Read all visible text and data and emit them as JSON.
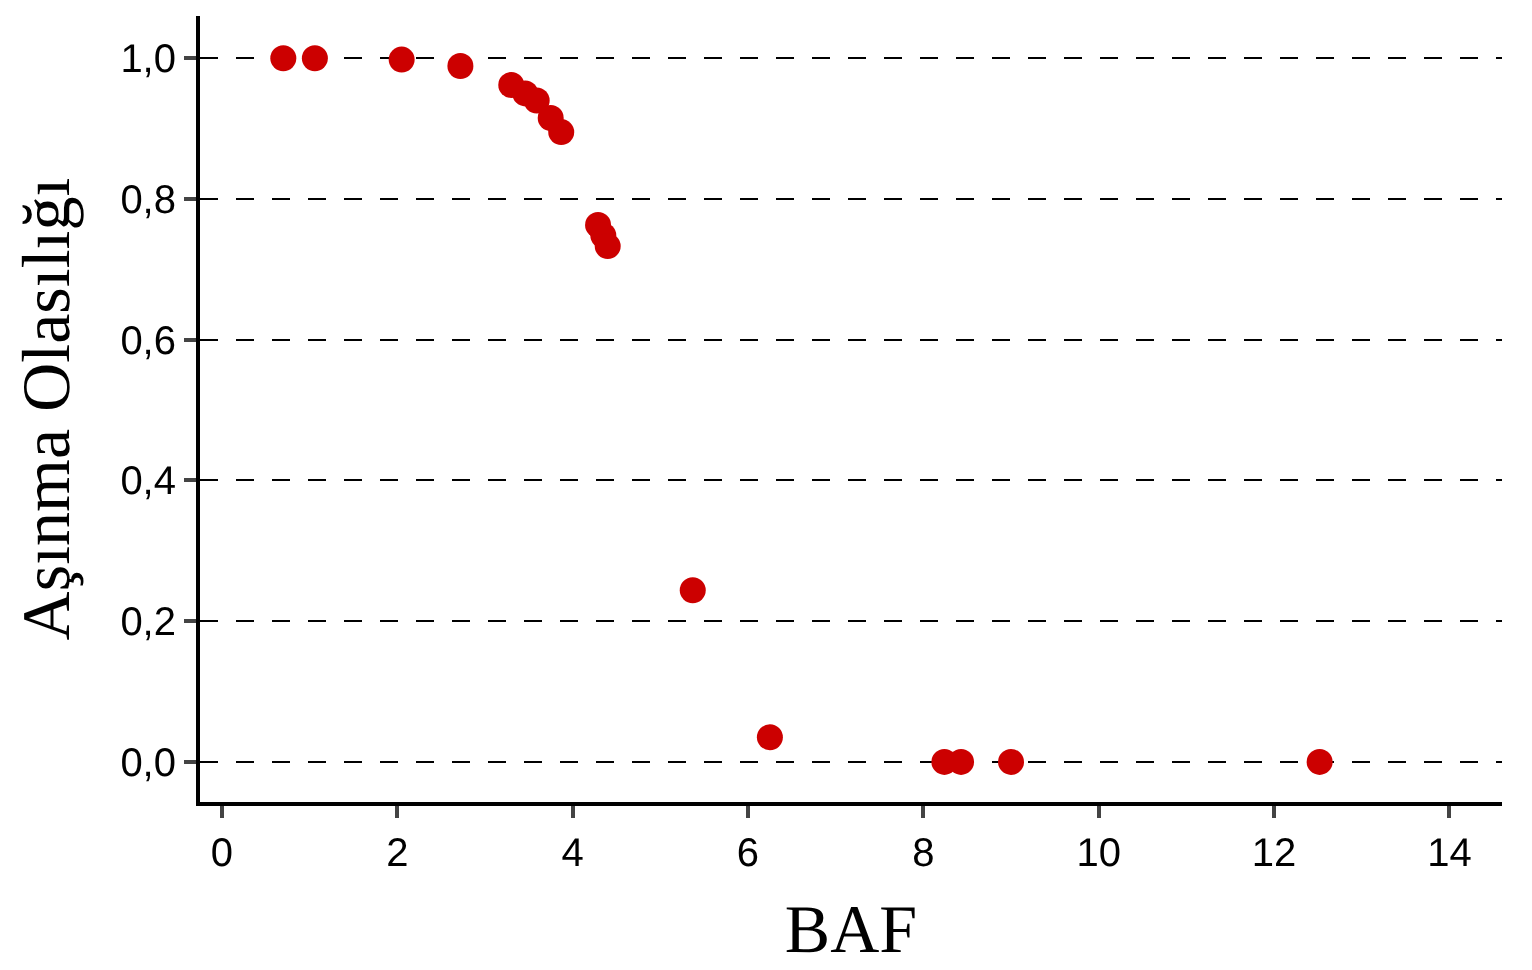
{
  "chart_data": {
    "type": "scatter",
    "xlabel": "BAF",
    "ylabel": "Aşınma Olasılığı",
    "x": [
      0.7,
      1.06,
      2.05,
      2.72,
      3.3,
      3.46,
      3.59,
      3.75,
      3.87,
      4.29,
      4.35,
      4.4,
      5.37,
      6.25,
      8.24,
      8.43,
      9.0,
      12.52
    ],
    "series": [
      {
        "color": "#cc0000",
        "values": [
          1.0,
          1.0,
          0.998,
          0.989,
          0.962,
          0.95,
          0.94,
          0.915,
          0.895,
          0.763,
          0.748,
          0.733,
          0.244,
          0.035,
          0.0,
          0.0,
          0.0,
          0.0
        ]
      }
    ],
    "xlim": [
      -0.25,
      14.6
    ],
    "ylim": [
      -0.057,
      1.06
    ],
    "xticks": [
      0,
      2,
      4,
      6,
      8,
      10,
      12,
      14
    ],
    "yticks": [
      {
        "value": 0,
        "label": "0,0"
      },
      {
        "value": 0.2,
        "label": "0,2"
      },
      {
        "value": 0.4,
        "label": "0,4"
      },
      {
        "value": 0.6,
        "label": "0,6"
      },
      {
        "value": 0.8,
        "label": "0,8"
      },
      {
        "value": 1.0,
        "label": "1,0"
      }
    ],
    "grid": "y",
    "marker": "circle",
    "legend": false
  }
}
